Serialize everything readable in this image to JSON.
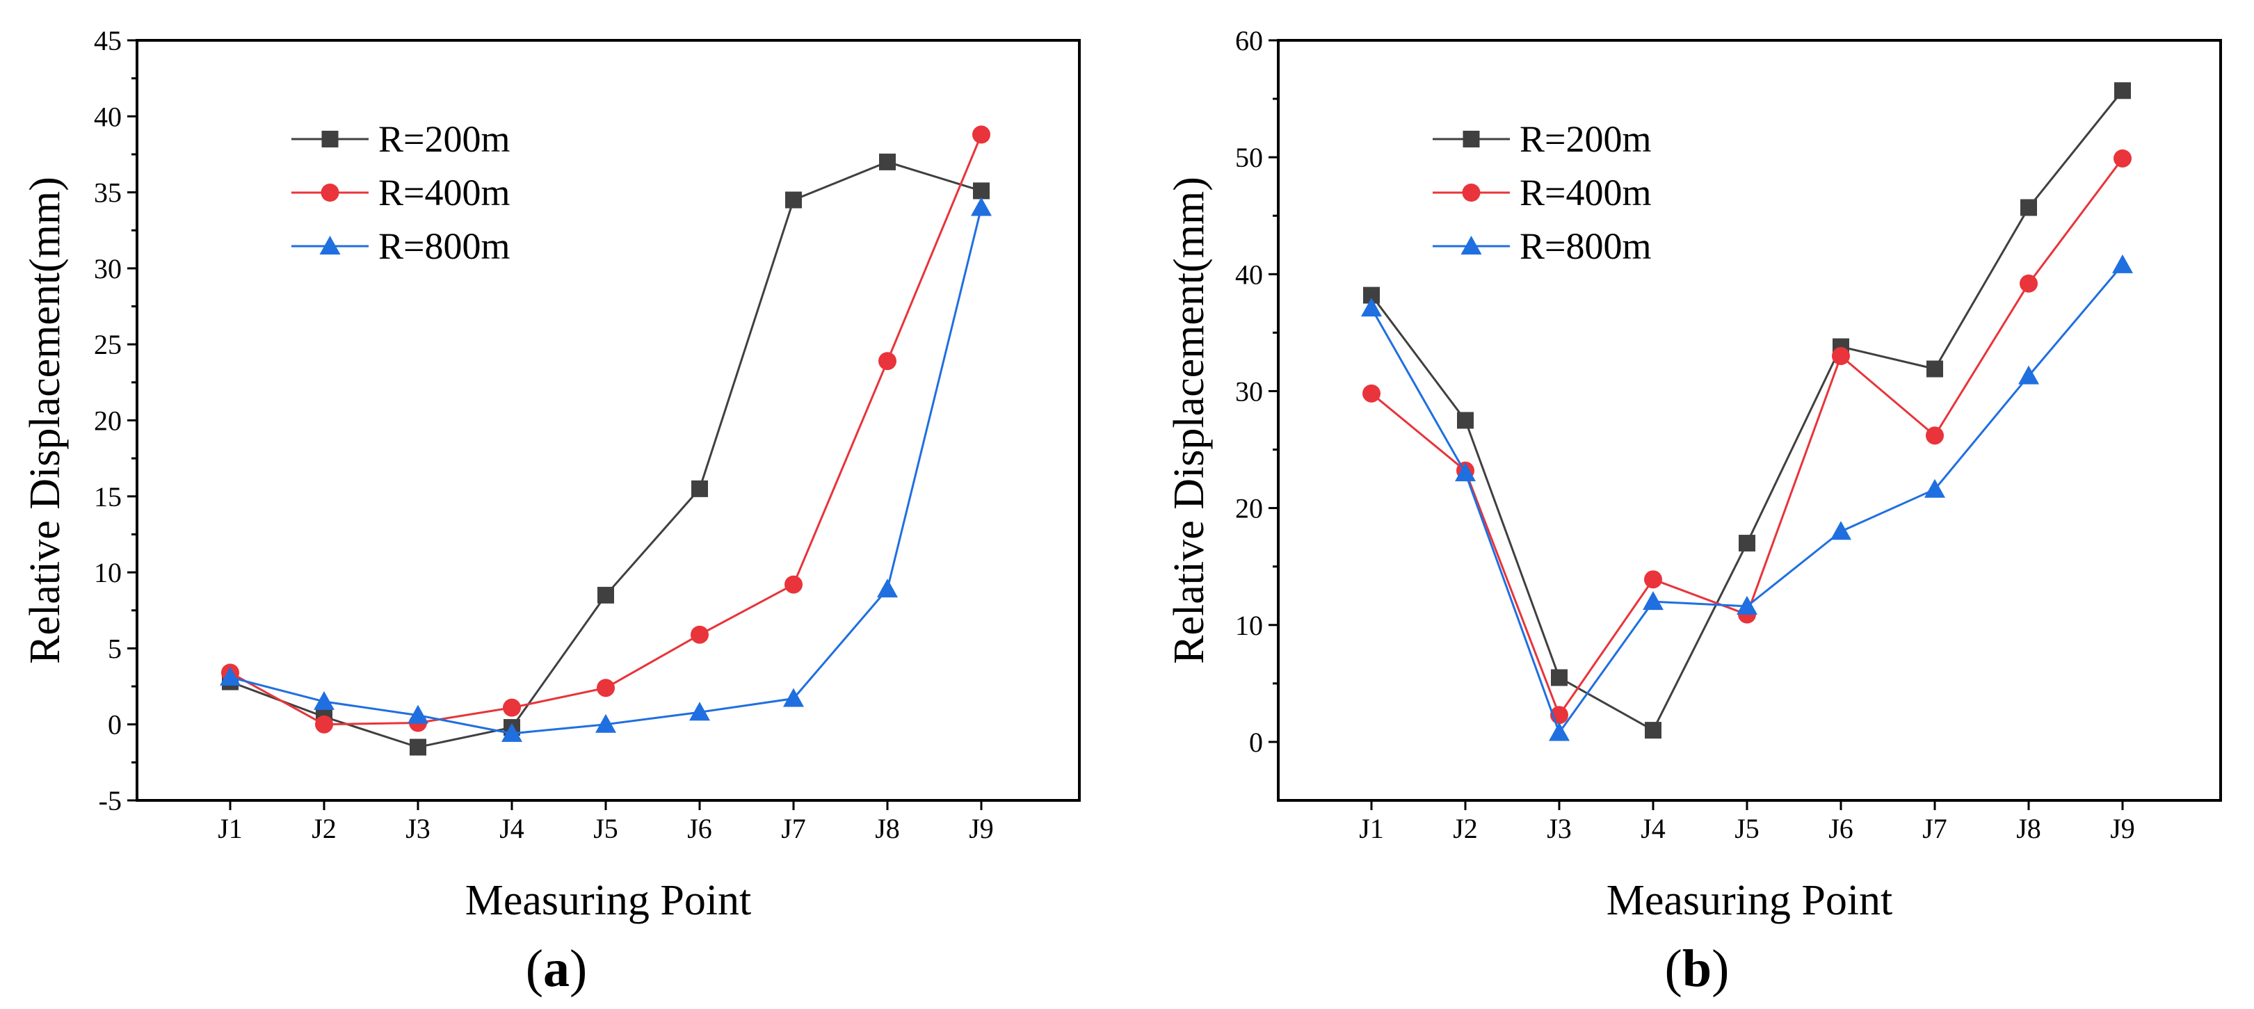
{
  "colors": {
    "R200": "#404040",
    "R400": "#e8343a",
    "R800": "#1f6fe0",
    "axis": "#000000"
  },
  "chart_data": [
    {
      "id": "a",
      "type": "line",
      "panel_label": "a",
      "xlabel": "Measuring Point",
      "ylabel": "Relative Displacement(mm)",
      "ylim": [
        -5,
        45
      ],
      "yticks": [
        -5,
        0,
        5,
        10,
        15,
        20,
        25,
        30,
        35,
        40,
        45
      ],
      "categories": [
        "J1",
        "J2",
        "J3",
        "J4",
        "J5",
        "J6",
        "J7",
        "J8",
        "J9"
      ],
      "legend_position": "upper-left",
      "series": [
        {
          "name": "R=200m",
          "marker": "square",
          "color": "#404040",
          "values": [
            2.8,
            0.5,
            -1.5,
            -0.2,
            8.5,
            15.5,
            34.5,
            37.0,
            35.1
          ]
        },
        {
          "name": "R=400m",
          "marker": "circle",
          "color": "#e8343a",
          "values": [
            3.4,
            0.0,
            0.1,
            1.1,
            2.4,
            5.9,
            9.2,
            23.9,
            38.8
          ]
        },
        {
          "name": "R=800m",
          "marker": "triangle",
          "color": "#1f6fe0",
          "values": [
            3.1,
            1.5,
            0.6,
            -0.6,
            0.0,
            0.8,
            1.7,
            8.9,
            34.0
          ]
        }
      ]
    },
    {
      "id": "b",
      "type": "line",
      "panel_label": "b",
      "xlabel": "Measuring Point",
      "ylabel": "Relative Displacement(mm)",
      "ylim": [
        -5,
        60
      ],
      "yticks": [
        0,
        10,
        20,
        30,
        40,
        50,
        60
      ],
      "categories": [
        "J1",
        "J2",
        "J3",
        "J4",
        "J5",
        "J6",
        "J7",
        "J8",
        "J9"
      ],
      "legend_position": "upper-left",
      "series": [
        {
          "name": "R=200m",
          "marker": "square",
          "color": "#404040",
          "values": [
            38.2,
            27.5,
            5.5,
            1.0,
            17.0,
            33.8,
            31.9,
            45.7,
            55.7
          ]
        },
        {
          "name": "R=400m",
          "marker": "circle",
          "color": "#e8343a",
          "values": [
            29.8,
            23.2,
            2.3,
            13.9,
            10.9,
            33.0,
            26.2,
            39.2,
            49.9
          ]
        },
        {
          "name": "R=800m",
          "marker": "triangle",
          "color": "#1f6fe0",
          "values": [
            37.1,
            23.0,
            0.8,
            12.0,
            11.6,
            18.0,
            21.6,
            31.3,
            40.8
          ]
        }
      ]
    }
  ]
}
